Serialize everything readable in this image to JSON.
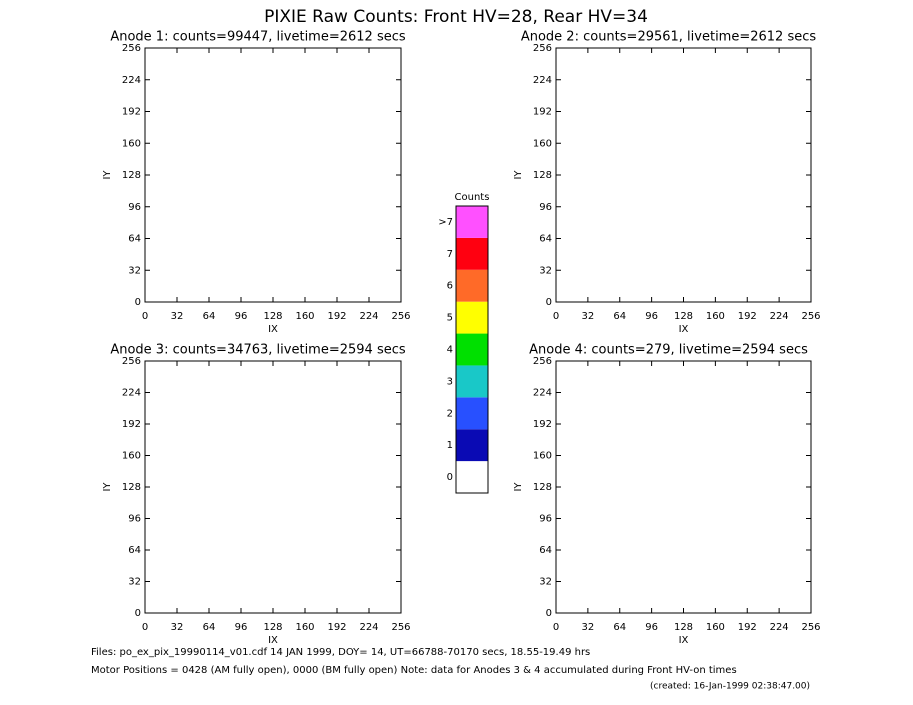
{
  "title": "PIXIE Raw Counts:  Front HV=28, Rear HV=34",
  "notes": [
    "Files: po_ex_pix_19990114_v01.cdf    14 JAN 1999, DOY= 14, UT=66788-70170 secs, 18.55-19.49 hrs",
    "Motor Positions = 0428 (AM fully open), 0000 (BM fully open)    Note: data for Anodes 3 & 4 accumulated during Front HV-on times",
    "(created: 16-Jan-1999 02:38:47.00)"
  ],
  "chart_data": [
    {
      "type": "heatmap",
      "title": "Anode 1: counts=99447, livetime=2612 secs",
      "xlabel": "IX",
      "ylabel": "IY",
      "xlim": [
        0,
        256
      ],
      "ylim": [
        0,
        256
      ],
      "xticks": [
        0,
        32,
        64,
        96,
        128,
        160,
        192,
        224,
        256
      ],
      "yticks": [
        0,
        32,
        64,
        96,
        128,
        160,
        192,
        224,
        256
      ]
    },
    {
      "type": "heatmap",
      "title": "Anode 2: counts=29561, livetime=2612 secs",
      "xlabel": "IX",
      "ylabel": "IY",
      "xlim": [
        0,
        256
      ],
      "ylim": [
        0,
        256
      ],
      "xticks": [
        0,
        32,
        64,
        96,
        128,
        160,
        192,
        224,
        256
      ],
      "yticks": [
        0,
        32,
        64,
        96,
        128,
        160,
        192,
        224,
        256
      ]
    },
    {
      "type": "heatmap",
      "title": "Anode 3: counts=34763, livetime=2594 secs",
      "xlabel": "IX",
      "ylabel": "IY",
      "xlim": [
        0,
        256
      ],
      "ylim": [
        0,
        256
      ],
      "xticks": [
        0,
        32,
        64,
        96,
        128,
        160,
        192,
        224,
        256
      ],
      "yticks": [
        0,
        32,
        64,
        96,
        128,
        160,
        192,
        224,
        256
      ]
    },
    {
      "type": "heatmap",
      "title": "Anode 4: counts=279, livetime=2594 secs",
      "xlabel": "IX",
      "ylabel": "IY",
      "xlim": [
        0,
        256
      ],
      "ylim": [
        0,
        256
      ],
      "xticks": [
        0,
        32,
        64,
        96,
        128,
        160,
        192,
        224,
        256
      ],
      "yticks": [
        0,
        32,
        64,
        96,
        128,
        160,
        192,
        224,
        256
      ]
    },
    {
      "type": "colorbar",
      "title": "Counts",
      "categories": [
        "0",
        "1",
        "2",
        "3",
        "4",
        "5",
        "6",
        "7",
        ">7"
      ],
      "colors": [
        "#ffffff",
        "#0a0ab4",
        "#2850ff",
        "#19c8c8",
        "#00e000",
        "#ffff00",
        "#ff6a28",
        "#ff0010",
        "#ff50ff"
      ]
    }
  ]
}
